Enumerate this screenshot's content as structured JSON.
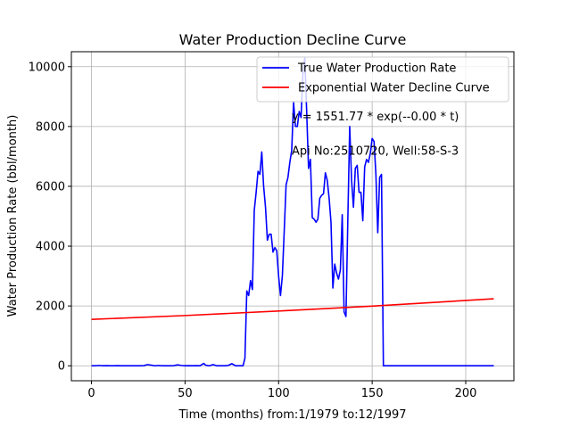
{
  "chart_data": {
    "type": "line",
    "title": "Water Production Decline Curve",
    "xlabel": "Time (months) from:1/1979 to:12/1997",
    "ylabel": "Water Production Rate (bbl/month)",
    "xlim": [
      -10.75,
      225.75
    ],
    "ylim": [
      -500,
      10500
    ],
    "xticks": [
      0,
      50,
      100,
      150,
      200
    ],
    "yticks": [
      0,
      2000,
      4000,
      6000,
      8000,
      10000
    ],
    "grid": true,
    "legend_position": "top-right",
    "annotations": [
      {
        "text": "y = 1551.77 * exp(--0.00 * t)",
        "x": 107,
        "y": 8350
      },
      {
        "text": "Api No:2510720, Well:58-S-3",
        "x": 107,
        "y": 7200
      }
    ],
    "series": [
      {
        "name": "True Water Production Rate",
        "color": "#0000ff",
        "points": [
          [
            0,
            0
          ],
          [
            2,
            0
          ],
          [
            4,
            10
          ],
          [
            6,
            0
          ],
          [
            8,
            5
          ],
          [
            10,
            0
          ],
          [
            12,
            0
          ],
          [
            14,
            5
          ],
          [
            16,
            0
          ],
          [
            18,
            0
          ],
          [
            20,
            0
          ],
          [
            22,
            0
          ],
          [
            24,
            0
          ],
          [
            26,
            0
          ],
          [
            28,
            5
          ],
          [
            30,
            40
          ],
          [
            32,
            20
          ],
          [
            34,
            0
          ],
          [
            36,
            10
          ],
          [
            38,
            0
          ],
          [
            40,
            0
          ],
          [
            42,
            0
          ],
          [
            44,
            5
          ],
          [
            46,
            30
          ],
          [
            48,
            10
          ],
          [
            50,
            0
          ],
          [
            52,
            5
          ],
          [
            54,
            0
          ],
          [
            56,
            5
          ],
          [
            58,
            0
          ],
          [
            60,
            80
          ],
          [
            61,
            20
          ],
          [
            63,
            0
          ],
          [
            65,
            40
          ],
          [
            67,
            0
          ],
          [
            69,
            0
          ],
          [
            71,
            0
          ],
          [
            73,
            10
          ],
          [
            75,
            70
          ],
          [
            77,
            0
          ],
          [
            79,
            0
          ],
          [
            81,
            0
          ],
          [
            82,
            250
          ],
          [
            83,
            2500
          ],
          [
            84,
            2350
          ],
          [
            85,
            2850
          ],
          [
            86,
            2550
          ],
          [
            87,
            5200
          ],
          [
            88,
            5800
          ],
          [
            89,
            6500
          ],
          [
            90,
            6400
          ],
          [
            91,
            7150
          ],
          [
            92,
            6000
          ],
          [
            93,
            5300
          ],
          [
            94,
            4200
          ],
          [
            95,
            4400
          ],
          [
            96,
            4400
          ],
          [
            97,
            3800
          ],
          [
            98,
            3950
          ],
          [
            99,
            3850
          ],
          [
            100,
            3000
          ],
          [
            101,
            2350
          ],
          [
            102,
            3000
          ],
          [
            103,
            4500
          ],
          [
            104,
            6050
          ],
          [
            105,
            6300
          ],
          [
            106,
            6800
          ],
          [
            107,
            7200
          ],
          [
            108,
            8800
          ],
          [
            109,
            8000
          ],
          [
            110,
            8000
          ],
          [
            111,
            8500
          ],
          [
            112,
            8300
          ],
          [
            113,
            9800
          ],
          [
            114,
            10300
          ],
          [
            115,
            8500
          ],
          [
            116,
            6600
          ],
          [
            117,
            6900
          ],
          [
            118,
            4950
          ],
          [
            119,
            4900
          ],
          [
            120,
            4800
          ],
          [
            121,
            4900
          ],
          [
            122,
            5600
          ],
          [
            123,
            5700
          ],
          [
            124,
            5750
          ],
          [
            125,
            6450
          ],
          [
            126,
            6200
          ],
          [
            127,
            5600
          ],
          [
            128,
            4800
          ],
          [
            129,
            2600
          ],
          [
            130,
            3400
          ],
          [
            131,
            3100
          ],
          [
            132,
            2900
          ],
          [
            133,
            3200
          ],
          [
            134,
            5050
          ],
          [
            135,
            1800
          ],
          [
            136,
            1650
          ],
          [
            137,
            4900
          ],
          [
            138,
            8000
          ],
          [
            139,
            6200
          ],
          [
            140,
            5300
          ],
          [
            141,
            6600
          ],
          [
            142,
            6700
          ],
          [
            143,
            5800
          ],
          [
            144,
            5800
          ],
          [
            145,
            4850
          ],
          [
            146,
            6650
          ],
          [
            147,
            6900
          ],
          [
            148,
            6800
          ],
          [
            149,
            7100
          ],
          [
            150,
            7600
          ],
          [
            151,
            7500
          ],
          [
            152,
            6400
          ],
          [
            153,
            4450
          ],
          [
            154,
            6300
          ],
          [
            155,
            6400
          ],
          [
            156,
            0
          ],
          [
            160,
            0
          ],
          [
            170,
            0
          ],
          [
            180,
            0
          ],
          [
            190,
            0
          ],
          [
            200,
            0
          ],
          [
            215,
            0
          ]
        ]
      },
      {
        "name": "Exponential Water Decline Curve",
        "color": "#ff0000",
        "points": [
          [
            0,
            1551.77
          ],
          [
            50,
            1680
          ],
          [
            100,
            1830
          ],
          [
            150,
            1995
          ],
          [
            215,
            2240
          ]
        ]
      }
    ]
  }
}
